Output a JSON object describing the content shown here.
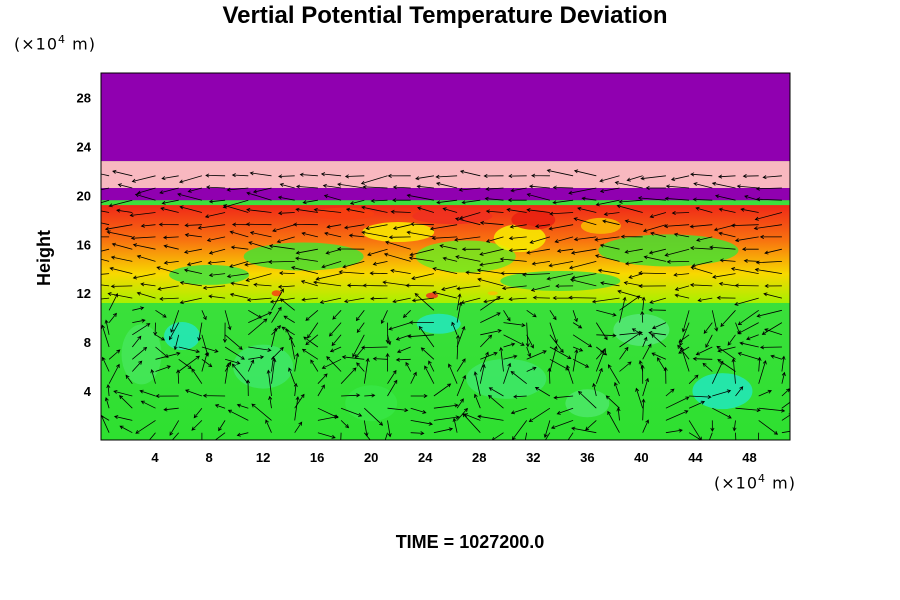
{
  "chart_data": {
    "type": "heatmap",
    "title": "Vertial Potential Temperature Deviation",
    "ylabel": "Height",
    "x_unit": {
      "prefix": "(×10",
      "exp": "4",
      "suffix": " m)"
    },
    "y_unit": {
      "prefix": "(×10",
      "exp": "4",
      "suffix": " m)"
    },
    "xlim": [
      0,
      51
    ],
    "ylim": [
      0,
      30
    ],
    "x_ticks": [
      4,
      8,
      12,
      16,
      20,
      24,
      28,
      32,
      36,
      40,
      44,
      48
    ],
    "y_ticks": [
      4,
      8,
      12,
      16,
      20,
      24,
      28
    ],
    "overlay": "wind vector arrows",
    "colors": {
      "upper_band": "#9000b0",
      "pink_band": "#f8b8c0",
      "warm_layer": "#f03020",
      "yellow": "#f8f000",
      "green": "#30e030",
      "light_green": "#40e870",
      "cyan": "#20e8d0"
    },
    "time_label": "TIME = 1027200.0"
  }
}
